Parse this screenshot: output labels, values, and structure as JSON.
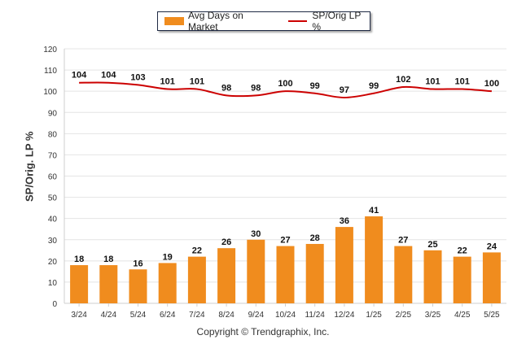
{
  "chart_data": {
    "type": "bar",
    "categories": [
      "3/24",
      "4/24",
      "5/24",
      "6/24",
      "7/24",
      "8/24",
      "9/24",
      "10/24",
      "11/24",
      "12/24",
      "1/25",
      "2/25",
      "3/25",
      "4/25",
      "5/25"
    ],
    "series": [
      {
        "name": "Avg Days on Market",
        "kind": "bar",
        "color": "#f08c1e",
        "values": [
          18,
          18,
          16,
          19,
          22,
          26,
          30,
          27,
          28,
          36,
          41,
          27,
          25,
          22,
          24
        ]
      },
      {
        "name": "SP/Orig LP %",
        "kind": "line",
        "color": "#cc0000",
        "values": [
          104,
          104,
          103,
          101,
          101,
          98,
          98,
          100,
          99,
          97,
          99,
          102,
          101,
          101,
          100
        ]
      }
    ],
    "ylabel": "SP/Orig. LP %",
    "ylim": [
      0,
      120
    ],
    "yticks": [
      0,
      10,
      20,
      30,
      40,
      50,
      60,
      70,
      80,
      90,
      100,
      110,
      120
    ],
    "grid": true,
    "legend_position": "top-center"
  },
  "footer": {
    "copyright": "Copyright © Trendgraphix, Inc."
  }
}
